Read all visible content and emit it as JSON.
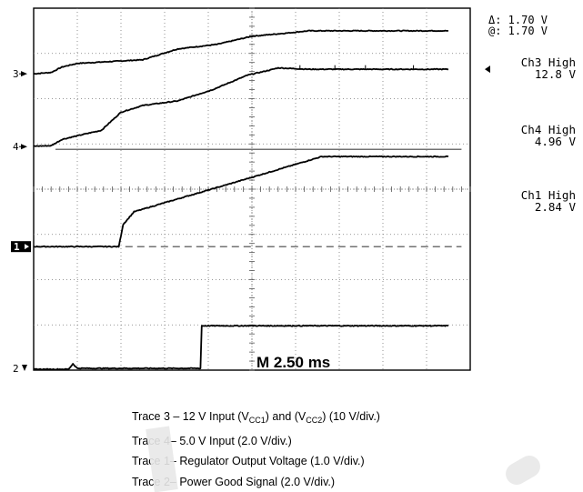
{
  "chart_data": {
    "type": "line",
    "title": "",
    "timebase": "M 2.50 ms",
    "cursor_readout": {
      "delta": "Δ: 1.70 V",
      "at": "@: 1.70 V"
    },
    "grid": true,
    "x_divisions": 10,
    "y_divisions": 8,
    "xlabel": "",
    "ylabel": "",
    "channel_labels": [
      {
        "name": "Ch3 High",
        "value": "12.8 V"
      },
      {
        "name": "Ch4 High",
        "value": "4.96 V"
      },
      {
        "name": "Ch1 High",
        "value": "2.84 V"
      }
    ],
    "series": [
      {
        "marker": "3",
        "x": [
          0,
          0.4,
          0.65,
          1.0,
          2.5,
          3.3,
          4.2,
          5.0,
          5.8,
          6.3,
          9.5
        ],
        "y": [
          6.55,
          6.58,
          6.7,
          6.78,
          6.86,
          7.1,
          7.2,
          7.38,
          7.45,
          7.5,
          7.5
        ]
      },
      {
        "marker": "4",
        "x": [
          0,
          0.4,
          0.65,
          1.0,
          1.55,
          2.0,
          2.5,
          3.3,
          4.1,
          4.9,
          5.4,
          5.6,
          6.3,
          9.5
        ],
        "y": [
          4.95,
          4.96,
          5.1,
          5.18,
          5.3,
          5.7,
          5.85,
          5.95,
          6.2,
          6.52,
          6.63,
          6.68,
          6.65,
          6.65
        ]
      },
      {
        "marker": "1",
        "x": [
          0,
          1.95,
          2.05,
          2.3,
          3.0,
          4.5,
          6.6,
          9.5
        ],
        "y": [
          2.73,
          2.73,
          3.22,
          3.5,
          3.7,
          4.12,
          4.72,
          4.72
        ]
      },
      {
        "marker": "2",
        "x": [
          0,
          0.8,
          0.9,
          1.0,
          3.82,
          3.85,
          9.5
        ],
        "y": [
          0.02,
          0.02,
          0.14,
          0.04,
          0.04,
          0.98,
          0.98
        ]
      }
    ],
    "reference_lines": [
      {
        "style": "solid",
        "y": 4.88
      },
      {
        "style": "dashed",
        "y": 2.73
      }
    ],
    "channel_markers": [
      {
        "label": "3",
        "y": 6.55
      },
      {
        "label": "4",
        "y": 4.94
      },
      {
        "label": "1",
        "y": 2.73
      },
      {
        "label": "2",
        "y": 0.04
      }
    ]
  },
  "legend": [
    {
      "pre": "Trace 3 – 12 V Input (V",
      "sub1": "CC1",
      "mid": ") and (V",
      "sub2": "CC2",
      "post": ") (10 V/div.)"
    },
    {
      "text": "Trace 4– 5.0 V Input (2.0 V/div.)"
    },
    {
      "text": "Trace 1– Regulator Output Voltage (1.0 V/div.)"
    },
    {
      "text": "Trace 2– Power Good Signal (2.0 V/div.)"
    }
  ]
}
